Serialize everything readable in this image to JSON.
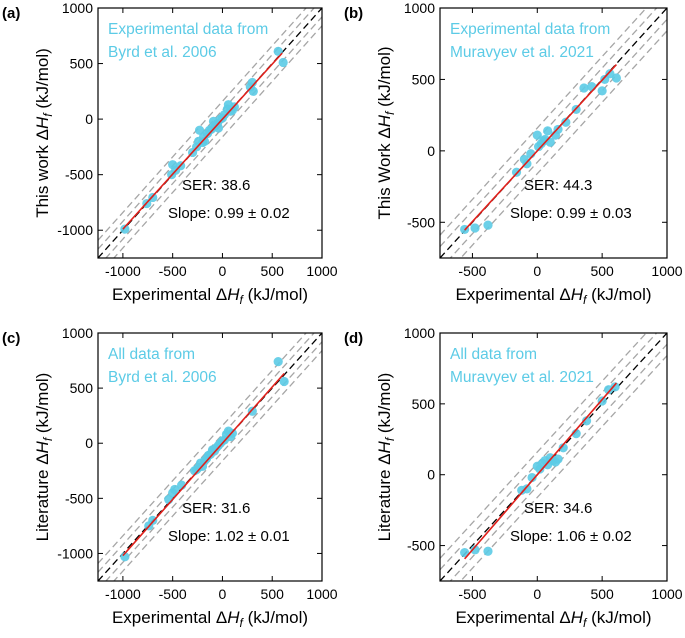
{
  "colors": {
    "points": "#5ccbe6",
    "fit": "#e0201b",
    "parity": "#000000",
    "band": "#a6a6a6"
  },
  "chart_data": [
    {
      "panel_label": "(a)",
      "type": "scatter",
      "xlabel": "Experimental ΔH_f (kJ/mol)",
      "xlabel_prefix": "Experimental ",
      "ylabel": "This work ΔH_f (kJ/mol)",
      "ylabel_prefix": "This work ",
      "unit": " (kJ/mol)",
      "xlim": [
        -1250,
        1000
      ],
      "ylim": [
        -1250,
        1000
      ],
      "xticks": [
        -1000,
        -500,
        0,
        500,
        1000
      ],
      "yticks": [
        -1000,
        -500,
        0,
        500,
        1000
      ],
      "xtick_labels": [
        "-1000",
        "-500",
        "0",
        "500",
        "1000"
      ],
      "ytick_labels": [
        "-1000",
        "-500",
        "0",
        "500",
        "1000"
      ],
      "legend_line1": "Experimental data from",
      "legend_line2": "Byrd et al. 2006",
      "ser_text": "SER: 38.6",
      "slope_text": "Slope: 0.99 ± 0.02",
      "fit": {
        "slope": 0.99,
        "intercept": 0,
        "x_range": [
          -1000,
          600
        ]
      },
      "band_offsets": [
        -80,
        80,
        -160,
        160
      ],
      "points": [
        [
          -980,
          -990
        ],
        [
          -760,
          -760
        ],
        [
          -700,
          -705
        ],
        [
          -510,
          -500
        ],
        [
          -500,
          -410
        ],
        [
          -470,
          -460
        ],
        [
          -420,
          -420
        ],
        [
          -300,
          -300
        ],
        [
          -260,
          -250
        ],
        [
          -240,
          -200
        ],
        [
          -230,
          -100
        ],
        [
          -200,
          -210
        ],
        [
          -190,
          -160
        ],
        [
          -180,
          -200
        ],
        [
          -150,
          -130
        ],
        [
          -130,
          -100
        ],
        [
          -110,
          -90
        ],
        [
          -90,
          -20
        ],
        [
          -70,
          -60
        ],
        [
          -50,
          -40
        ],
        [
          -40,
          -80
        ],
        [
          -20,
          0
        ],
        [
          0,
          10
        ],
        [
          20,
          40
        ],
        [
          50,
          90
        ],
        [
          60,
          130
        ],
        [
          80,
          70
        ],
        [
          100,
          80
        ],
        [
          120,
          110
        ],
        [
          280,
          290
        ],
        [
          300,
          330
        ],
        [
          310,
          250
        ],
        [
          560,
          610
        ],
        [
          610,
          510
        ]
      ]
    },
    {
      "panel_label": "(b)",
      "type": "scatter",
      "xlabel": "Experimental ΔH_f (kJ/mol)",
      "xlabel_prefix": "Experimental ",
      "ylabel": "This Work ΔH_f (kJ/mol)",
      "ylabel_prefix": "This Work ",
      "unit": " (kJ/mol)",
      "xlim": [
        -750,
        1000
      ],
      "ylim": [
        -750,
        1000
      ],
      "xticks": [
        -500,
        0,
        500,
        1000
      ],
      "yticks": [
        -500,
        0,
        500,
        1000
      ],
      "xtick_labels": [
        "-500",
        "0",
        "500",
        "1000"
      ],
      "ytick_labels": [
        "-500",
        "0",
        "500",
        "1000"
      ],
      "legend_line1": "Experimental data from",
      "legend_line2": "Muravyev et al. 2021",
      "ser_text": "SER: 44.3",
      "slope_text": "Slope: 0.99 ± 0.03",
      "fit": {
        "slope": 0.99,
        "intercept": 0,
        "x_range": [
          -560,
          610
        ]
      },
      "band_offsets": [
        -80,
        80,
        -160,
        160
      ],
      "points": [
        [
          -560,
          -550
        ],
        [
          -480,
          -540
        ],
        [
          -380,
          -520
        ],
        [
          -160,
          -150
        ],
        [
          -100,
          -60
        ],
        [
          -80,
          -90
        ],
        [
          -50,
          -20
        ],
        [
          0,
          110
        ],
        [
          10,
          30
        ],
        [
          30,
          50
        ],
        [
          50,
          70
        ],
        [
          60,
          80
        ],
        [
          80,
          140
        ],
        [
          100,
          60
        ],
        [
          140,
          110
        ],
        [
          160,
          150
        ],
        [
          220,
          200
        ],
        [
          300,
          290
        ],
        [
          360,
          440
        ],
        [
          420,
          450
        ],
        [
          500,
          420
        ],
        [
          520,
          500
        ],
        [
          560,
          540
        ],
        [
          610,
          510
        ]
      ]
    },
    {
      "panel_label": "(c)",
      "type": "scatter",
      "xlabel": "Experimental ΔH_f (kJ/mol)",
      "xlabel_prefix": "Experimental ",
      "ylabel": "Literature ΔH_f (kJ/mol)",
      "ylabel_prefix": "Literature ",
      "unit": " (kJ/mol)",
      "xlim": [
        -1250,
        1000
      ],
      "ylim": [
        -1250,
        1000
      ],
      "xticks": [
        -1000,
        -500,
        0,
        500,
        1000
      ],
      "yticks": [
        -1000,
        -500,
        0,
        500,
        1000
      ],
      "xtick_labels": [
        "-1000",
        "-500",
        "0",
        "500",
        "1000"
      ],
      "ytick_labels": [
        "-1000",
        "-500",
        "0",
        "500",
        "1000"
      ],
      "legend_line1": "All data from",
      "legend_line2": "Byrd et al. 2006",
      "ser_text": "SER: 31.6",
      "slope_text": "Slope: 1.02 ± 0.01",
      "fit": {
        "slope": 1.02,
        "intercept": 0,
        "x_range": [
          -1000,
          620
        ]
      },
      "band_offsets": [
        -80,
        80,
        -160,
        160
      ],
      "points": [
        [
          -980,
          -1030
        ],
        [
          -740,
          -750
        ],
        [
          -700,
          -700
        ],
        [
          -540,
          -510
        ],
        [
          -500,
          -450
        ],
        [
          -480,
          -420
        ],
        [
          -410,
          -380
        ],
        [
          -280,
          -250
        ],
        [
          -260,
          -240
        ],
        [
          -240,
          -220
        ],
        [
          -220,
          -180
        ],
        [
          -200,
          -210
        ],
        [
          -180,
          -160
        ],
        [
          -160,
          -140
        ],
        [
          -140,
          -110
        ],
        [
          -120,
          -100
        ],
        [
          -100,
          -60
        ],
        [
          -80,
          -70
        ],
        [
          -60,
          -40
        ],
        [
          -40,
          -20
        ],
        [
          -20,
          0
        ],
        [
          0,
          20
        ],
        [
          20,
          30
        ],
        [
          40,
          80
        ],
        [
          60,
          110
        ],
        [
          80,
          60
        ],
        [
          100,
          90
        ],
        [
          300,
          290
        ],
        [
          560,
          740
        ],
        [
          620,
          560
        ]
      ]
    },
    {
      "panel_label": "(d)",
      "type": "scatter",
      "xlabel": "Experimental ΔH_f (kJ/mol)",
      "xlabel_prefix": "Experimental ",
      "ylabel": "Literature ΔH_f (kJ/mol)",
      "ylabel_prefix": "Literature ",
      "unit": " (kJ/mol)",
      "xlim": [
        -750,
        1000
      ],
      "ylim": [
        -750,
        1000
      ],
      "xticks": [
        -500,
        0,
        500,
        1000
      ],
      "yticks": [
        -500,
        0,
        500,
        1000
      ],
      "xtick_labels": [
        "-500",
        "0",
        "500",
        "1000"
      ],
      "ytick_labels": [
        "-500",
        "0",
        "500",
        "1000"
      ],
      "legend_line1": "All data from",
      "legend_line2": "Muravyev et al. 2021",
      "ser_text": "SER: 34.6",
      "slope_text": "Slope: 1.06 ± 0.02",
      "fit": {
        "slope": 1.06,
        "intercept": 0,
        "x_range": [
          -560,
          610
        ]
      },
      "band_offsets": [
        -80,
        80,
        -160,
        160
      ],
      "points": [
        [
          -560,
          -550
        ],
        [
          -480,
          -530
        ],
        [
          -380,
          -540
        ],
        [
          -120,
          -110
        ],
        [
          -80,
          -100
        ],
        [
          -40,
          -20
        ],
        [
          0,
          60
        ],
        [
          20,
          40
        ],
        [
          40,
          80
        ],
        [
          60,
          100
        ],
        [
          80,
          70
        ],
        [
          100,
          120
        ],
        [
          120,
          100
        ],
        [
          140,
          90
        ],
        [
          160,
          110
        ],
        [
          200,
          190
        ],
        [
          300,
          290
        ],
        [
          380,
          380
        ],
        [
          500,
          520
        ],
        [
          550,
          600
        ],
        [
          600,
          620
        ]
      ]
    }
  ]
}
